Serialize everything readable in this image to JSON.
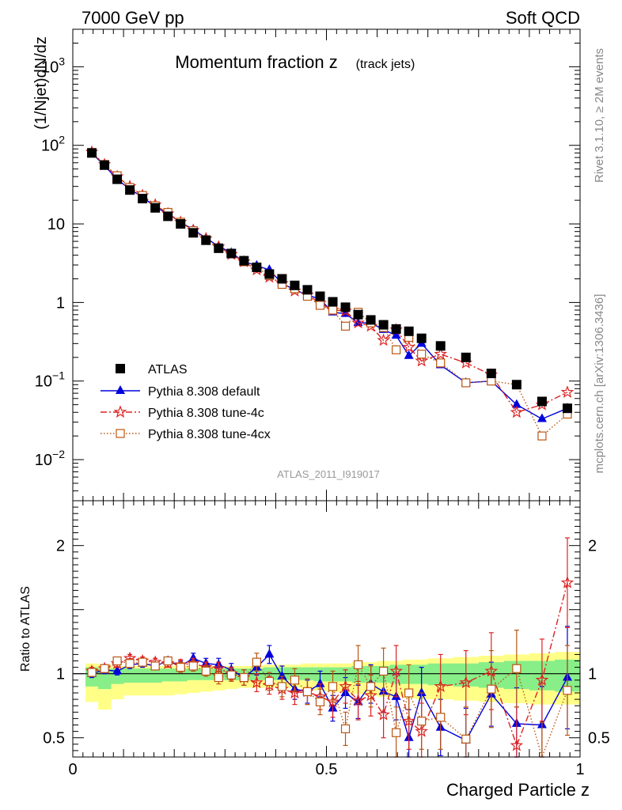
{
  "header": {
    "left": "7000 GeV pp",
    "right": "Soft QCD"
  },
  "side_labels": {
    "rivet": "Rivet 3.1.10, ≥ 2M events",
    "mcplots": "mcplots.cern.ch [arXiv:1306.3436]"
  },
  "chart_data": [
    {
      "type": "scatter",
      "title_main": "Momentum fraction z",
      "title_sub": "(track jets)",
      "ylabel": "(1/Njet)dN/dz",
      "watermark": "ATLAS_2011_I919017",
      "yscale": "log",
      "ylim": [
        0.003,
        3000
      ],
      "xlim": [
        0,
        1
      ],
      "y_ticks": [
        {
          "value": 0.01,
          "base": "10",
          "exp": "−2"
        },
        {
          "value": 0.1,
          "base": "10",
          "exp": "−1"
        },
        {
          "value": 1,
          "label": "1"
        },
        {
          "value": 10,
          "label": "10"
        },
        {
          "value": 100,
          "base": "10",
          "exp": "2"
        },
        {
          "value": 1000,
          "base": "10",
          "exp": "3"
        }
      ],
      "legend_position": "bottom-left",
      "x": [
        0.0375,
        0.0625,
        0.0875,
        0.1125,
        0.1375,
        0.1625,
        0.1875,
        0.2125,
        0.2375,
        0.2625,
        0.2875,
        0.3125,
        0.3375,
        0.3625,
        0.3875,
        0.4125,
        0.4375,
        0.4625,
        0.4875,
        0.5125,
        0.5375,
        0.5625,
        0.5875,
        0.6125,
        0.6375,
        0.6625,
        0.6875,
        0.725,
        0.775,
        0.825,
        0.875,
        0.925,
        0.975
      ],
      "series": [
        {
          "name": "ATLAS",
          "color": "#000000",
          "marker": "square-filled",
          "values": [
            80,
            56,
            37,
            27,
            21,
            16,
            12.5,
            10,
            7.7,
            6.2,
            4.9,
            4.2,
            3.4,
            2.8,
            2.3,
            2.0,
            1.65,
            1.45,
            1.2,
            1.02,
            0.87,
            0.7,
            0.6,
            0.52,
            0.46,
            0.43,
            0.35,
            0.28,
            0.2,
            0.125,
            0.09,
            0.055,
            0.045
          ]
        },
        {
          "name": "Pythia 8.308 default",
          "color": "#0000dd",
          "marker": "triangle-filled",
          "line": "solid",
          "values": [
            80,
            55,
            37,
            27.5,
            22,
            16.5,
            13.5,
            10.5,
            8.5,
            6.6,
            5.2,
            4.3,
            3.3,
            2.95,
            2.6,
            1.75,
            1.45,
            1.25,
            1.1,
            0.75,
            0.72,
            0.55,
            0.55,
            0.45,
            0.38,
            0.21,
            0.3,
            0.16,
            0.095,
            0.1,
            0.05,
            0.033,
            0.045
          ]
        },
        {
          "name": "Pythia 8.308 tune-4c",
          "color": "#dd2222",
          "marker": "star-open",
          "line": "dashdot",
          "values": [
            82,
            57,
            40,
            30,
            23,
            17.5,
            13.5,
            10.5,
            8.3,
            6.5,
            5.1,
            4.1,
            3.3,
            2.6,
            2.1,
            1.75,
            1.4,
            1.25,
            0.98,
            0.8,
            0.78,
            0.55,
            0.5,
            0.33,
            0.45,
            0.27,
            0.18,
            0.22,
            0.17,
            0.12,
            0.04,
            0.05,
            0.072
          ]
        },
        {
          "name": "Pythia 8.308 tune-4cx",
          "color": "#bb5511",
          "marker": "square-open",
          "line": "dotted",
          "values": [
            81,
            57,
            41,
            29,
            23,
            17,
            14,
            10.5,
            8.2,
            6.3,
            4.9,
            4.2,
            3.3,
            2.8,
            2.2,
            1.7,
            1.5,
            1.2,
            0.92,
            0.8,
            0.5,
            0.75,
            0.55,
            0.48,
            0.25,
            0.36,
            0.22,
            0.17,
            0.095,
            0.1,
            0.09,
            0.02,
            0.038
          ]
        }
      ]
    },
    {
      "type": "scatter",
      "title": "",
      "xlabel": "Charged Particle z",
      "ylabel": "Ratio to ATLAS",
      "ylim": [
        0.35,
        2.35
      ],
      "xlim": [
        0,
        1
      ],
      "x_ticks": [
        {
          "value": 0,
          "label": "0"
        },
        {
          "value": 0.5,
          "label": "0.5"
        },
        {
          "value": 1,
          "label": "1"
        }
      ],
      "y_ticks": [
        {
          "value": 0.5,
          "label": "0.5"
        },
        {
          "value": 1,
          "label": "1"
        },
        {
          "value": 2,
          "label": "2"
        }
      ],
      "reference_line": 1,
      "band_edges": [
        0.025,
        0.05,
        0.075,
        0.1,
        0.125,
        0.15,
        0.175,
        0.2,
        0.225,
        0.25,
        0.275,
        0.3,
        0.325,
        0.35,
        0.375,
        0.4,
        0.425,
        0.45,
        0.475,
        0.5,
        0.525,
        0.55,
        0.575,
        0.6,
        0.625,
        0.65,
        0.675,
        0.7,
        0.75,
        0.8,
        0.85,
        0.9,
        0.95,
        1.0
      ],
      "band_outer_color": "#ffff88",
      "band_inner_color": "#88ee88",
      "band_outer_lo": [
        0.78,
        0.72,
        0.8,
        0.83,
        0.83,
        0.83,
        0.83,
        0.84,
        0.85,
        0.86,
        0.87,
        0.88,
        0.89,
        0.89,
        0.89,
        0.89,
        0.89,
        0.88,
        0.87,
        0.86,
        0.85,
        0.84,
        0.83,
        0.82,
        0.82,
        0.81,
        0.8,
        0.8,
        0.79,
        0.78,
        0.77,
        0.76,
        0.76
      ],
      "band_outer_hi": [
        1.08,
        1.07,
        1.06,
        1.06,
        1.06,
        1.06,
        1.06,
        1.06,
        1.06,
        1.06,
        1.06,
        1.06,
        1.06,
        1.06,
        1.07,
        1.07,
        1.07,
        1.08,
        1.08,
        1.08,
        1.08,
        1.09,
        1.09,
        1.1,
        1.1,
        1.11,
        1.11,
        1.12,
        1.13,
        1.14,
        1.15,
        1.16,
        1.17
      ],
      "band_inner_lo": [
        0.9,
        0.88,
        0.92,
        0.93,
        0.93,
        0.93,
        0.94,
        0.94,
        0.95,
        0.95,
        0.95,
        0.95,
        0.95,
        0.95,
        0.95,
        0.95,
        0.95,
        0.95,
        0.94,
        0.94,
        0.94,
        0.93,
        0.93,
        0.93,
        0.92,
        0.92,
        0.92,
        0.91,
        0.9,
        0.89,
        0.88,
        0.87,
        0.86
      ],
      "band_inner_hi": [
        1.05,
        1.04,
        1.04,
        1.04,
        1.04,
        1.04,
        1.04,
        1.04,
        1.04,
        1.04,
        1.04,
        1.04,
        1.04,
        1.04,
        1.05,
        1.05,
        1.05,
        1.05,
        1.05,
        1.05,
        1.05,
        1.06,
        1.06,
        1.06,
        1.07,
        1.07,
        1.07,
        1.08,
        1.08,
        1.09,
        1.1,
        1.1,
        1.11
      ],
      "series": [
        {
          "name": "Pythia 8.308 default",
          "color": "#0000dd",
          "marker": "triangle-filled",
          "line": "solid",
          "values": [
            1.0,
            1.03,
            1.02,
            1.07,
            1.08,
            1.06,
            1.1,
            1.06,
            1.12,
            1.08,
            1.07,
            1.03,
            0.97,
            1.05,
            1.15,
            0.98,
            0.88,
            0.86,
            0.92,
            0.73,
            0.85,
            0.78,
            0.92,
            0.86,
            0.82,
            0.5,
            0.85,
            0.58,
            0.48,
            0.84,
            0.61,
            0.6,
            0.97
          ],
          "err": [
            0.03,
            0.03,
            0.03,
            0.03,
            0.03,
            0.03,
            0.03,
            0.04,
            0.04,
            0.04,
            0.05,
            0.05,
            0.06,
            0.06,
            0.07,
            0.08,
            0.08,
            0.09,
            0.1,
            0.1,
            0.12,
            0.13,
            0.15,
            0.16,
            0.18,
            0.22,
            0.2,
            0.22,
            0.25,
            0.25,
            0.28,
            0.3,
            0.4
          ]
        },
        {
          "name": "Pythia 8.308 tune-4c",
          "color": "#dd2222",
          "marker": "star-open",
          "line": "dashdot",
          "values": [
            1.02,
            1.04,
            1.08,
            1.12,
            1.1,
            1.09,
            1.08,
            1.07,
            1.08,
            1.05,
            1.04,
            1.0,
            0.97,
            0.93,
            0.91,
            0.88,
            0.85,
            0.86,
            0.82,
            0.78,
            0.9,
            0.79,
            0.83,
            0.68,
            1.02,
            0.63,
            0.55,
            0.9,
            0.93,
            1.02,
            0.44,
            0.95,
            1.71
          ],
          "err": [
            0.03,
            0.03,
            0.03,
            0.03,
            0.03,
            0.03,
            0.03,
            0.04,
            0.04,
            0.04,
            0.05,
            0.05,
            0.06,
            0.07,
            0.07,
            0.08,
            0.09,
            0.1,
            0.1,
            0.12,
            0.13,
            0.15,
            0.16,
            0.18,
            0.2,
            0.22,
            0.22,
            0.25,
            0.25,
            0.3,
            0.3,
            0.32,
            0.35
          ]
        },
        {
          "name": "Pythia 8.308 tune-4cx",
          "color": "#bb5511",
          "marker": "square-open",
          "line": "dotted",
          "values": [
            1.01,
            1.04,
            1.1,
            1.08,
            1.09,
            1.06,
            1.1,
            1.05,
            1.06,
            1.02,
            0.97,
            0.99,
            0.97,
            1.09,
            0.94,
            0.9,
            0.95,
            0.86,
            0.78,
            0.9,
            0.57,
            1.07,
            0.9,
            1.02,
            0.54,
            0.85,
            0.63,
            0.66,
            0.49,
            0.88,
            1.04,
            0.3,
            0.87
          ],
          "err": [
            0.03,
            0.03,
            0.03,
            0.03,
            0.03,
            0.03,
            0.03,
            0.04,
            0.04,
            0.04,
            0.05,
            0.05,
            0.06,
            0.07,
            0.07,
            0.08,
            0.09,
            0.1,
            0.1,
            0.12,
            0.13,
            0.15,
            0.16,
            0.18,
            0.2,
            0.22,
            0.22,
            0.25,
            0.25,
            0.3,
            0.3,
            0.32,
            0.35
          ]
        }
      ]
    }
  ]
}
